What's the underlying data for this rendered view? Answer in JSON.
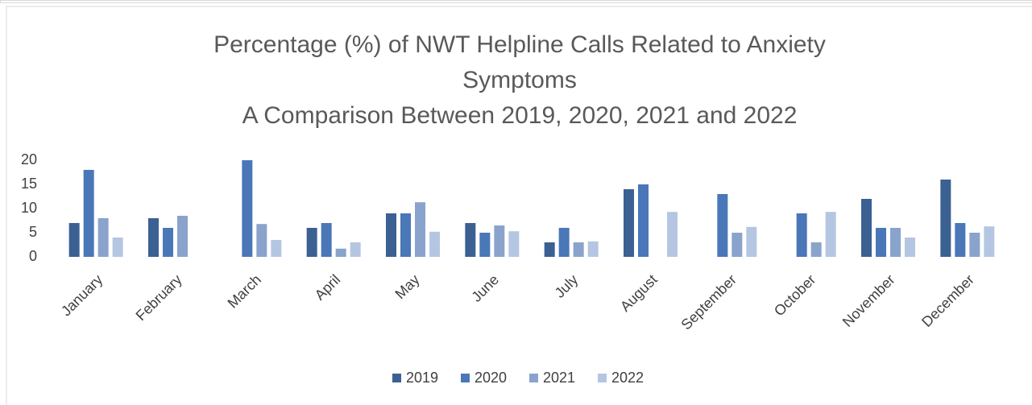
{
  "chart_data": {
    "type": "bar",
    "title": "Percentage (%) of NWT Helpline Calls Related to Anxiety Symptoms",
    "subtitle": "A Comparison Between 2019, 2020, 2021 and 2022",
    "categories": [
      "January",
      "February",
      "March",
      "April",
      "May",
      "June",
      "July",
      "August",
      "September",
      "October",
      "November",
      "December"
    ],
    "series": [
      {
        "name": "2019",
        "color": "#3b6092",
        "values": [
          7,
          8,
          null,
          6,
          9,
          7,
          3,
          14,
          null,
          null,
          12,
          16
        ]
      },
      {
        "name": "2020",
        "color": "#4a77b8",
        "values": [
          18,
          6,
          20,
          7,
          9,
          5,
          6,
          15,
          13,
          9,
          6,
          7
        ]
      },
      {
        "name": "2021",
        "color": "#8aa3cc",
        "values": [
          8,
          8.5,
          6.8,
          1.7,
          11.3,
          6.5,
          3,
          null,
          5,
          3,
          6,
          5
        ]
      },
      {
        "name": "2022",
        "color": "#b5c6e2",
        "values": [
          4,
          null,
          3.5,
          3,
          5.2,
          5.3,
          3.2,
          9.3,
          6.2,
          9.3,
          4,
          6.3
        ]
      }
    ],
    "ylim": [
      0,
      20
    ],
    "yticks": [
      0,
      5,
      10,
      15,
      20
    ],
    "grid": false,
    "legend": "bottom"
  }
}
